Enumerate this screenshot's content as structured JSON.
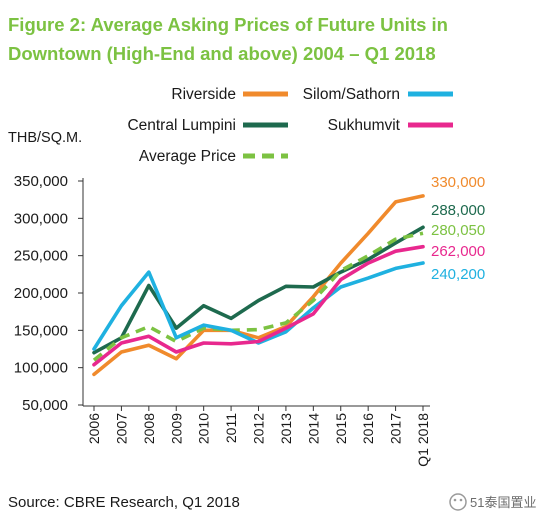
{
  "chart_data": {
    "type": "line",
    "title_line1": "Figure 2: Average Asking Prices of Future Units in",
    "title_line2": "Downtown (High-End and above) 2004 – Q1 2018",
    "ylabel": "THB/SQ.M.",
    "xlabel": "",
    "categories": [
      "2006",
      "2007",
      "2008",
      "2009",
      "2010",
      "2011",
      "2012",
      "2013",
      "2014",
      "2015",
      "2016",
      "2017",
      "Q1 2018"
    ],
    "ylim": [
      50000,
      350000
    ],
    "yticks": [
      {
        "value": 50000,
        "label": "50,000"
      },
      {
        "value": 100000,
        "label": "100,000"
      },
      {
        "value": 150000,
        "label": "150,000"
      },
      {
        "value": 200000,
        "label": "200,000"
      },
      {
        "value": 250000,
        "label": "250,000"
      },
      {
        "value": 300000,
        "label": "300,000"
      },
      {
        "value": 350000,
        "label": "350,000"
      }
    ],
    "grid": false,
    "legend_position": "top",
    "series": [
      {
        "name": "Riverside",
        "color": "#f08a2c",
        "dashed": false,
        "end_label": "330,000",
        "values": [
          91000,
          121000,
          130000,
          112000,
          150000,
          150000,
          140000,
          155000,
          195000,
          240000,
          280000,
          322000,
          330000
        ]
      },
      {
        "name": "Central Lumpini",
        "color": "#1e6a4e",
        "dashed": false,
        "end_label": "288,000",
        "values": [
          120000,
          140000,
          210000,
          153000,
          183000,
          166000,
          190000,
          209000,
          208000,
          228000,
          245000,
          267000,
          288000
        ]
      },
      {
        "name": "Average Price",
        "color": "#7cc242",
        "dashed": true,
        "end_label": "280,050",
        "values": [
          110000,
          140000,
          155000,
          135000,
          153000,
          150000,
          151000,
          160000,
          190000,
          230000,
          250000,
          272000,
          280050
        ]
      },
      {
        "name": "Silom/Sathorn",
        "color": "#1fb1e0",
        "dashed": false,
        "end_label": "240,200",
        "values": [
          125000,
          183000,
          228000,
          140000,
          157000,
          150000,
          133000,
          148000,
          180000,
          208000,
          220000,
          233000,
          240200
        ]
      },
      {
        "name": "Sukhumvit",
        "color": "#e8288e",
        "dashed": false,
        "end_label": "262,000",
        "values": [
          104000,
          133000,
          142000,
          121000,
          133000,
          132000,
          135000,
          153000,
          172000,
          218000,
          240000,
          256000,
          262000
        ]
      }
    ]
  },
  "source": "Source: CBRE Research, Q1 2018",
  "watermark": "51泰国置业"
}
